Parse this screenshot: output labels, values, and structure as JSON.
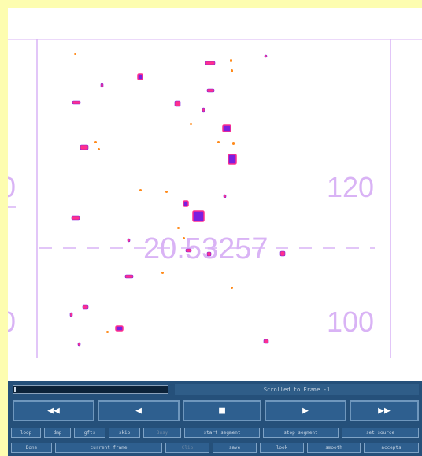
{
  "viewer": {
    "readout": "20.53257",
    "left_labels": [
      "0",
      "0"
    ],
    "right_labels": [
      "120",
      "100"
    ],
    "colors": {
      "overlay": "#d9b3f5",
      "blob_core": "#7a1fe0",
      "blob_edge": "#ff2f8e",
      "speck": "#ff8a1a"
    }
  },
  "controls": {
    "status": "Scrolled to Frame -1",
    "progress_fraction": 0.01,
    "transport": [
      {
        "icon": "rewind-icon",
        "glyph": "◀◀"
      },
      {
        "icon": "play-reverse-icon",
        "glyph": "◀"
      },
      {
        "icon": "stop-icon",
        "glyph": "■"
      },
      {
        "icon": "play-icon",
        "glyph": "▶"
      },
      {
        "icon": "fast-forward-icon",
        "glyph": "▶▶"
      }
    ],
    "row1": [
      "loop",
      "dmp",
      "gfts",
      "skip",
      "Busy",
      "start segment",
      "stop segment",
      "set source"
    ],
    "row2": [
      "Done",
      "current frame",
      "Clip",
      "save",
      "look",
      "smooth",
      "accepts"
    ]
  }
}
